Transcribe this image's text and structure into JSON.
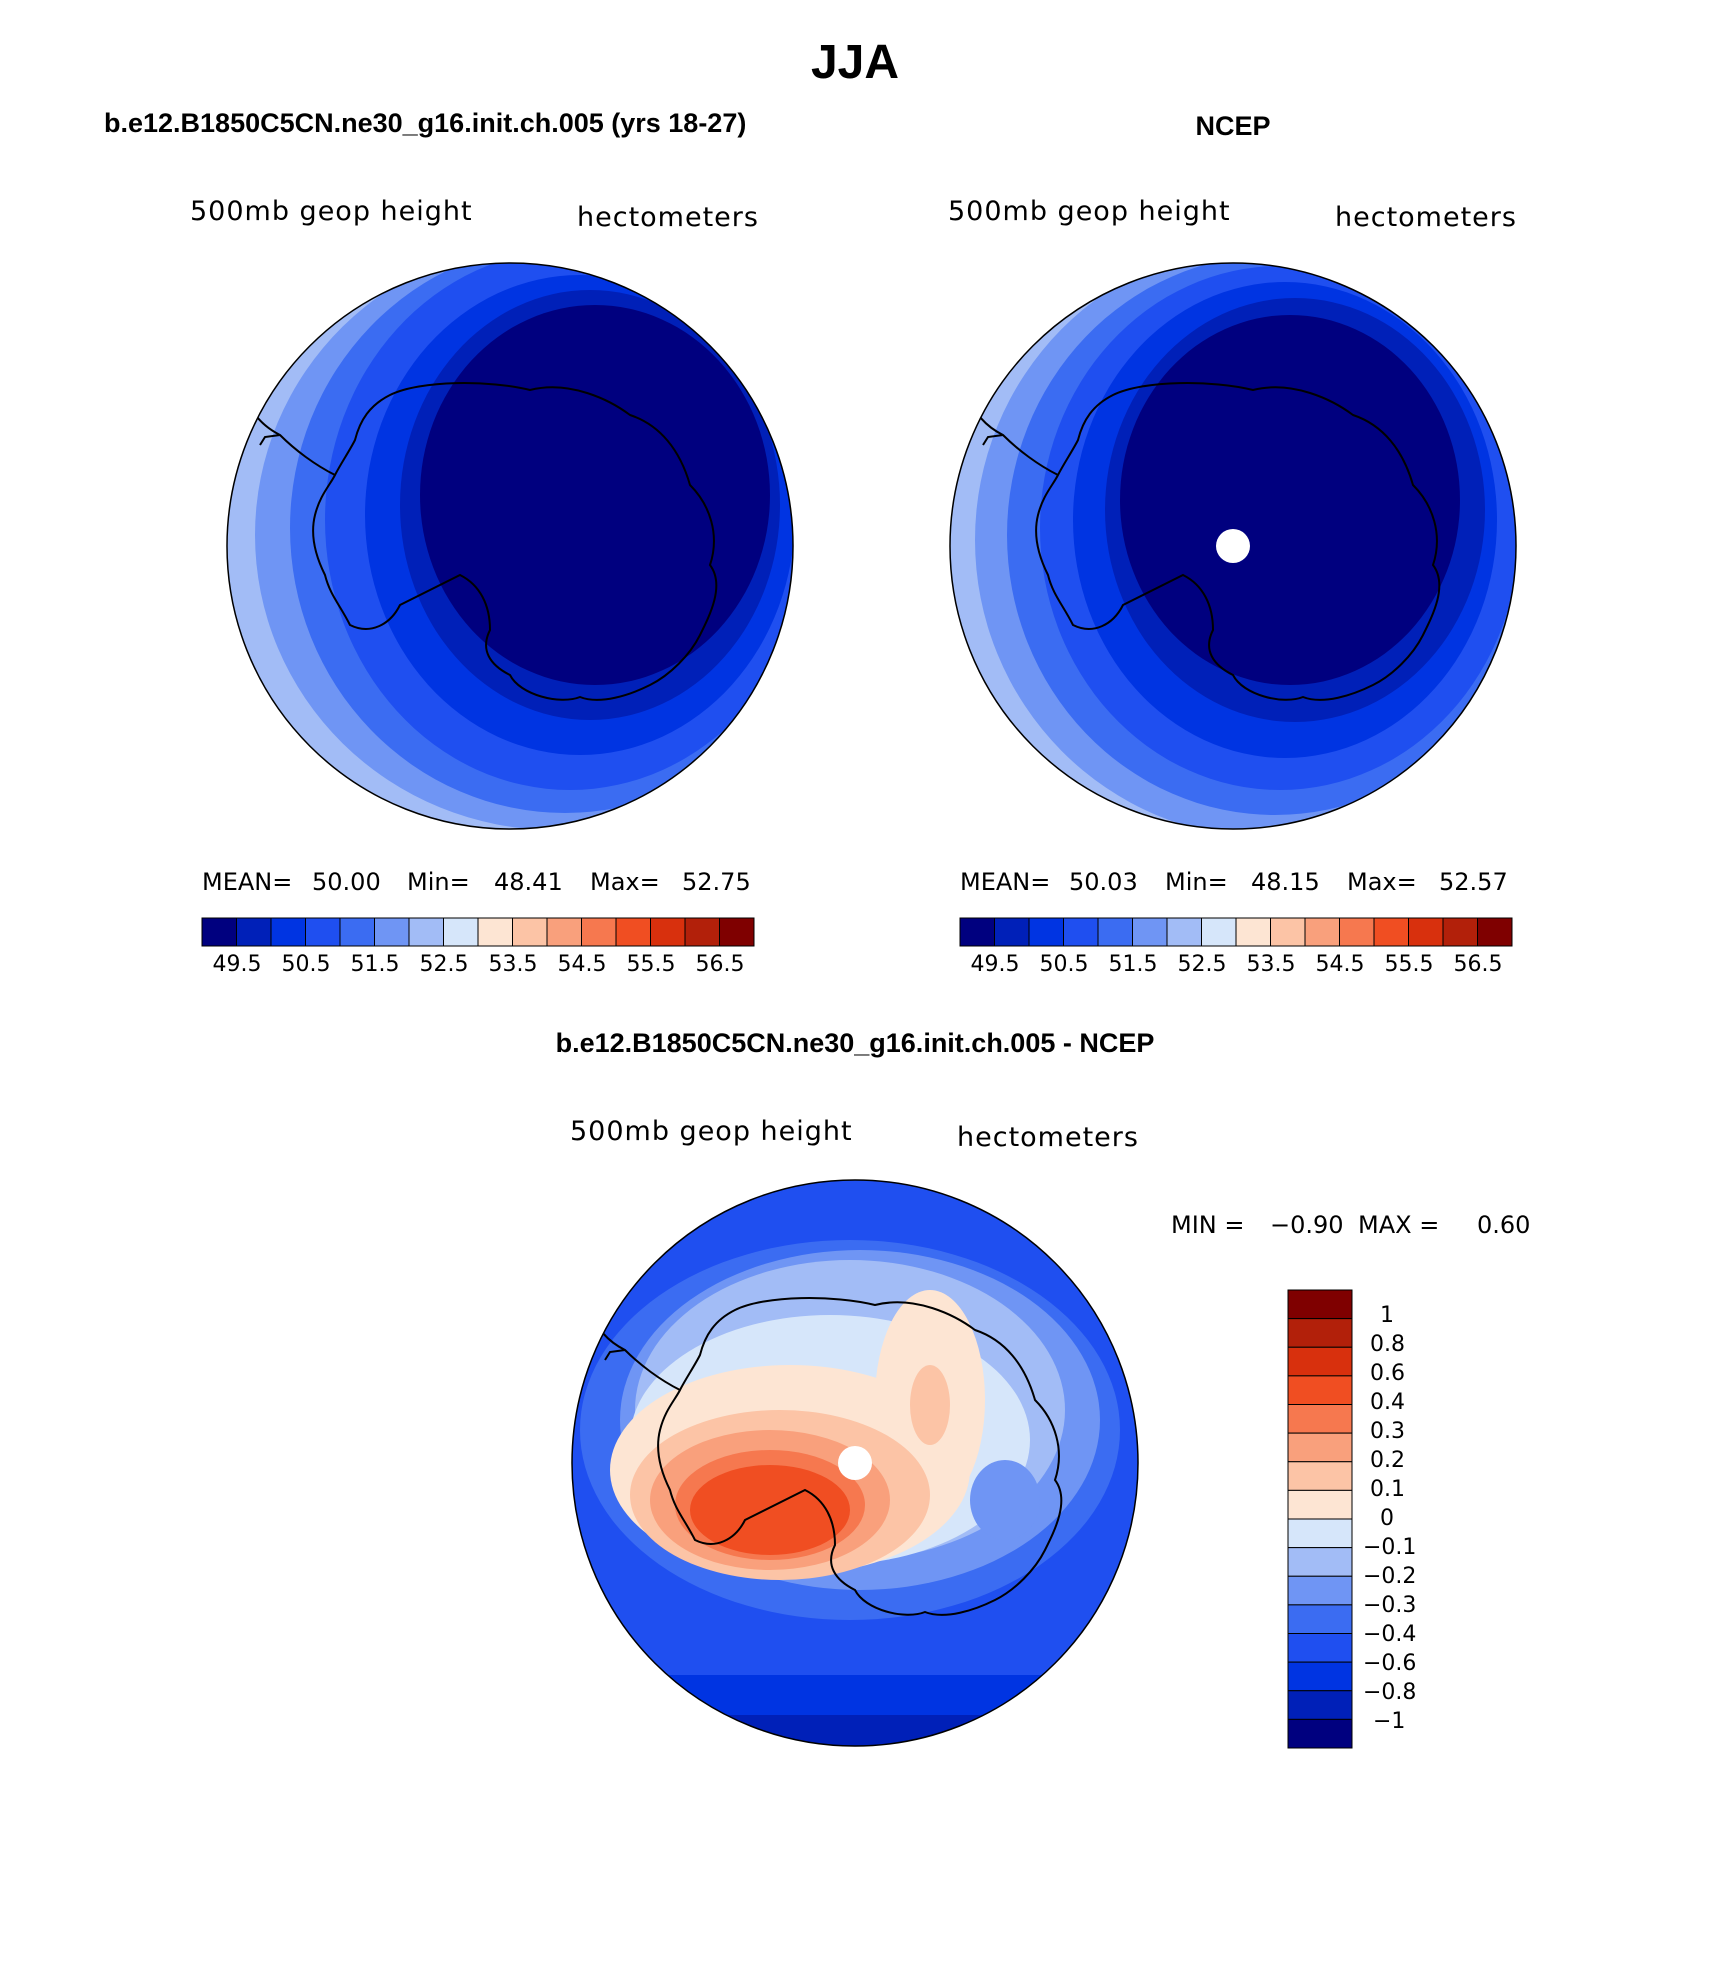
{
  "page_title": "JJA",
  "panels": [
    {
      "title": "b.e12.B1850C5CN.ne30_g16.init.ch.005 (yrs 18-27)",
      "left_label": "500mb geop height",
      "right_label": "hectometers",
      "stats": {
        "mean_label": "MEAN=",
        "mean": "50.00",
        "min_label": "Min=",
        "min": "48.41",
        "max_label": "Max=",
        "max": "52.75"
      },
      "colorbar_labels": [
        "49.5",
        "50.5",
        "51.5",
        "52.5",
        "53.5",
        "54.5",
        "55.5",
        "56.5"
      ]
    },
    {
      "title": "NCEP",
      "left_label": "500mb geop height",
      "right_label": "hectometers",
      "stats": {
        "mean_label": "MEAN=",
        "mean": "50.03",
        "min_label": "Min=",
        "min": "48.15",
        "max_label": "Max=",
        "max": "52.57"
      },
      "colorbar_labels": [
        "49.5",
        "50.5",
        "51.5",
        "52.5",
        "53.5",
        "54.5",
        "55.5",
        "56.5"
      ]
    },
    {
      "title": "b.e12.B1850C5CN.ne30_g16.init.ch.005 - NCEP",
      "left_label": "500mb geop height",
      "right_label": "hectometers",
      "minmax": {
        "min_label": "MIN =",
        "min": "−0.90",
        "max_label": "MAX =",
        "max": "0.60"
      },
      "colorbar_labels": [
        "1",
        "0.8",
        "0.6",
        "0.4",
        "0.3",
        "0.2",
        "0.1",
        "0",
        "−0.1",
        "−0.2",
        "−0.3",
        "−0.4",
        "−0.6",
        "−0.8",
        "−1"
      ]
    }
  ],
  "colors": {
    "field_scale": [
      "#00007f",
      "#0020b8",
      "#0034e2",
      "#1f4ff0",
      "#3b6cf2",
      "#6f95f4",
      "#a2bcf6",
      "#d6e6fa",
      "#fde5d3",
      "#fcc4a6",
      "#f9a07c",
      "#f6784f",
      "#f04e22",
      "#d8300d",
      "#b2200a",
      "#7f0000"
    ],
    "diff_scale_top_to_bottom": [
      "#7f0000",
      "#b2200a",
      "#d8300d",
      "#f04e22",
      "#f6784f",
      "#f9a07c",
      "#fcc4a6",
      "#fde5d3",
      "#d6e6fa",
      "#a2bcf6",
      "#6f95f4",
      "#3b6cf2",
      "#1f4ff0",
      "#0034e2",
      "#0020b8",
      "#00007f"
    ]
  }
}
